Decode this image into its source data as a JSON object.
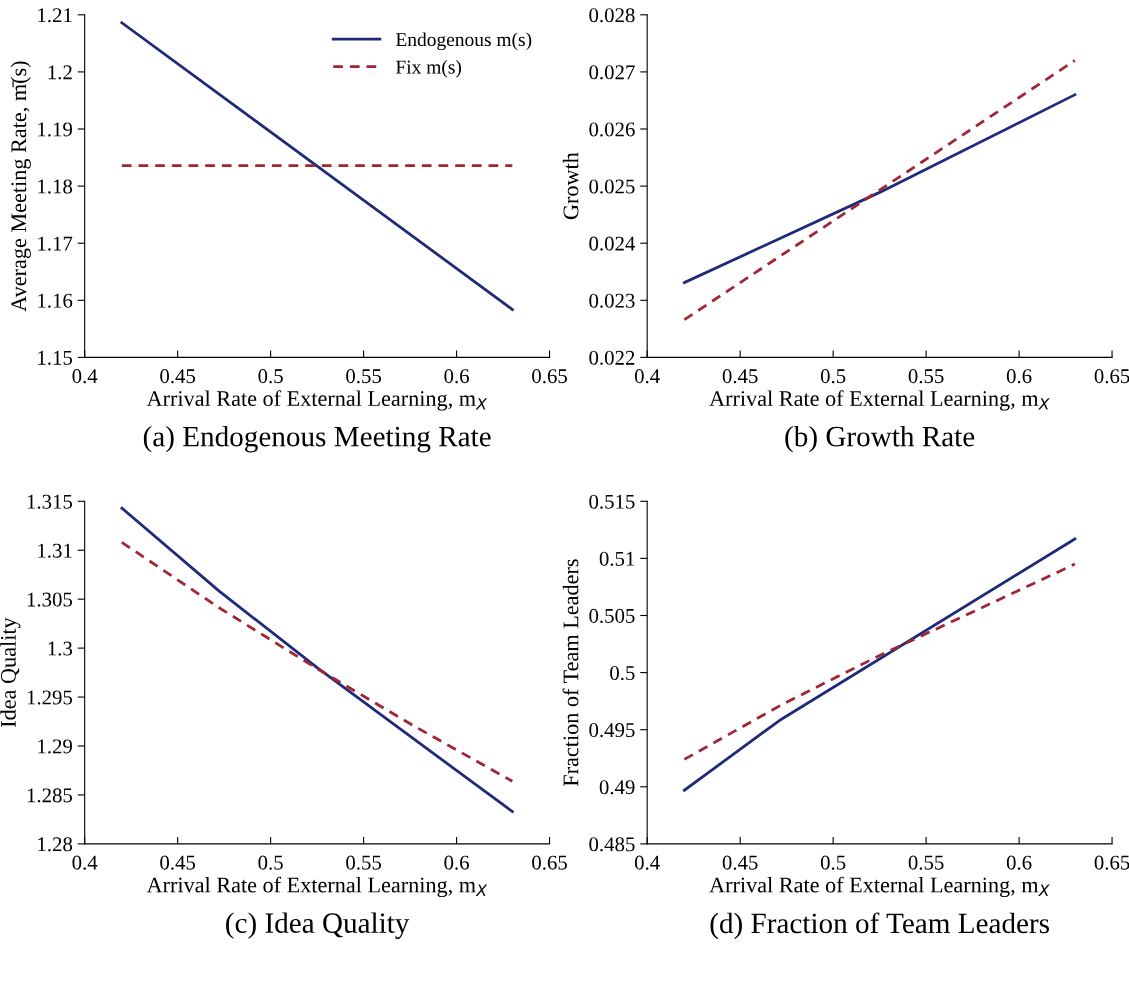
{
  "chart_data": [
    {
      "type": "line",
      "title": "(a) Endogenous Meeting Rate",
      "xlabel": "Arrival Rate of External Learning, m$_{X}$",
      "ylabel": "Average Meeting Rate, m̄(s)",
      "xlim": [
        0.4,
        0.65
      ],
      "xticks": [
        0.4,
        0.45,
        0.5,
        0.55,
        0.6,
        0.65
      ],
      "ylim": [
        1.15,
        1.21
      ],
      "yticks": [
        1.15,
        1.16,
        1.17,
        1.18,
        1.19,
        1.2,
        1.21
      ],
      "grid": false,
      "legend": "top right",
      "series": [
        {
          "name": "Endogenous m(s)",
          "color": "#1f2a7a",
          "line_style": "solid",
          "x": [
            0.42,
            0.63
          ],
          "values": [
            1.2086,
            1.1584
          ]
        },
        {
          "name": "Fix m(s)",
          "color": "#a02535",
          "line_style": "dashed",
          "x": [
            0.42,
            0.63
          ],
          "values": [
            1.1836,
            1.1836
          ]
        }
      ]
    },
    {
      "type": "line",
      "title": "(b) Growth Rate",
      "xlabel": "Arrival Rate of External Learning, m$_{X}$",
      "ylabel": "Growth",
      "xlim": [
        0.4,
        0.65
      ],
      "xticks": [
        0.4,
        0.45,
        0.5,
        0.55,
        0.6,
        0.65
      ],
      "ylim": [
        0.022,
        0.028
      ],
      "yticks": [
        0.022,
        0.023,
        0.024,
        0.025,
        0.026,
        0.027,
        0.028
      ],
      "grid": false,
      "legend": false,
      "series": [
        {
          "color": "#1f2a7a",
          "line_style": "solid",
          "x": [
            0.42,
            0.525,
            0.63
          ],
          "values": [
            0.02331,
            0.02489,
            0.0266
          ]
        },
        {
          "color": "#a02535",
          "line_style": "dashed",
          "x": [
            0.42,
            0.63
          ],
          "values": [
            0.02266,
            0.0272
          ]
        }
      ]
    },
    {
      "type": "line",
      "title": "(c) Idea Quality",
      "xlabel": "Arrival Rate of External Learning, m$_{X}$",
      "ylabel": "Idea Quality",
      "xlim": [
        0.4,
        0.65
      ],
      "xticks": [
        0.4,
        0.45,
        0.5,
        0.55,
        0.6,
        0.65
      ],
      "ylim": [
        1.28,
        1.315
      ],
      "yticks": [
        1.28,
        1.285,
        1.29,
        1.295,
        1.3,
        1.305,
        1.31,
        1.315
      ],
      "grid": false,
      "legend": false,
      "series": [
        {
          "color": "#1f2a7a",
          "line_style": "solid",
          "x": [
            0.42,
            0.4725,
            0.525,
            0.63
          ],
          "values": [
            1.3143,
            1.3058,
            1.298,
            1.2833
          ]
        },
        {
          "color": "#a02535",
          "line_style": "dashed",
          "x": [
            0.42,
            0.4725,
            0.525,
            0.5775,
            0.63
          ],
          "values": [
            1.3108,
            1.3041,
            1.2979,
            1.292,
            1.2864
          ]
        }
      ]
    },
    {
      "type": "line",
      "title": "(d) Fraction of Team Leaders",
      "xlabel": "Arrival Rate of External Learning, m$_{X}$",
      "ylabel": "Fraction of Team Leaders",
      "xlim": [
        0.4,
        0.65
      ],
      "xticks": [
        0.4,
        0.45,
        0.5,
        0.55,
        0.6,
        0.65
      ],
      "ylim": [
        0.485,
        0.515
      ],
      "yticks": [
        0.485,
        0.49,
        0.495,
        0.5,
        0.505,
        0.51,
        0.515
      ],
      "grid": false,
      "legend": false,
      "series": [
        {
          "color": "#1f2a7a",
          "line_style": "solid",
          "x": [
            0.42,
            0.4711,
            0.63
          ],
          "values": [
            0.4897,
            0.4958,
            0.5117
          ]
        },
        {
          "color": "#a02535",
          "line_style": "dashed",
          "x": [
            0.42,
            0.4725,
            0.525,
            0.5775,
            0.63
          ],
          "values": [
            0.4924,
            0.4972,
            0.5015,
            0.5055,
            0.5095
          ]
        }
      ]
    }
  ]
}
